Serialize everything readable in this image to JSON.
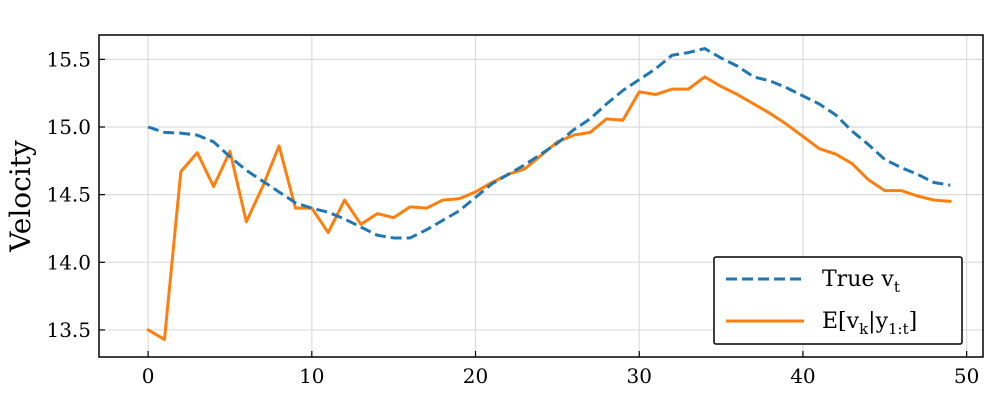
{
  "chart_data": {
    "type": "line",
    "title": "",
    "xlabel": "",
    "ylabel": "Velocity",
    "xlim": [
      -3,
      51
    ],
    "ylim": [
      13.3,
      15.68
    ],
    "xticks": [
      0,
      10,
      20,
      30,
      40,
      50
    ],
    "yticks": [
      13.5,
      14.0,
      14.5,
      15.0,
      15.5
    ],
    "xtick_labels": [
      "0",
      "10",
      "20",
      "30",
      "40",
      "50"
    ],
    "ytick_labels": [
      "13.5",
      "14.0",
      "14.5",
      "15.0",
      "15.5"
    ],
    "grid": true,
    "legend_position": "lower-right",
    "x": [
      0,
      1,
      2,
      3,
      4,
      5,
      6,
      7,
      8,
      9,
      10,
      11,
      12,
      13,
      14,
      15,
      16,
      17,
      18,
      19,
      20,
      21,
      22,
      23,
      24,
      25,
      26,
      27,
      28,
      29,
      30,
      31,
      32,
      33,
      34,
      35,
      36,
      37,
      38,
      39,
      40,
      41,
      42,
      43,
      44,
      45,
      46,
      47,
      48,
      49
    ],
    "series": [
      {
        "name": "True v_t",
        "legend_main": "True v",
        "legend_sub": "t",
        "color": "#1f77b4",
        "style": "dashed",
        "values": [
          15.0,
          14.96,
          14.955,
          14.94,
          14.89,
          14.78,
          14.68,
          14.6,
          14.52,
          14.44,
          14.4,
          14.37,
          14.32,
          14.26,
          14.2,
          14.18,
          14.18,
          14.24,
          14.31,
          14.38,
          14.48,
          14.58,
          14.65,
          14.72,
          14.8,
          14.88,
          14.98,
          15.06,
          15.17,
          15.27,
          15.35,
          15.43,
          15.53,
          15.55,
          15.58,
          15.51,
          15.45,
          15.37,
          15.34,
          15.29,
          15.23,
          15.17,
          15.09,
          14.97,
          14.87,
          14.76,
          14.7,
          14.65,
          14.59,
          14.57
        ]
      },
      {
        "name": "E[v_k|y_{1:t}]",
        "legend_main": "E[v",
        "legend_sub1": "k",
        "legend_mid": "|y",
        "legend_sub2": "1:t",
        "legend_end": "]",
        "color": "#ff7f0e",
        "style": "solid",
        "values": [
          13.5,
          13.43,
          14.67,
          14.81,
          14.56,
          14.82,
          14.3,
          14.56,
          14.86,
          14.4,
          14.4,
          14.22,
          14.46,
          14.28,
          14.36,
          14.33,
          14.41,
          14.4,
          14.46,
          14.47,
          14.52,
          14.59,
          14.65,
          14.69,
          14.79,
          14.89,
          14.94,
          14.96,
          15.06,
          15.05,
          15.26,
          15.24,
          15.28,
          15.28,
          15.37,
          15.3,
          15.24,
          15.17,
          15.1,
          15.02,
          14.93,
          14.84,
          14.8,
          14.73,
          14.61,
          14.53,
          14.53,
          14.49,
          14.46,
          14.45
        ]
      }
    ]
  }
}
